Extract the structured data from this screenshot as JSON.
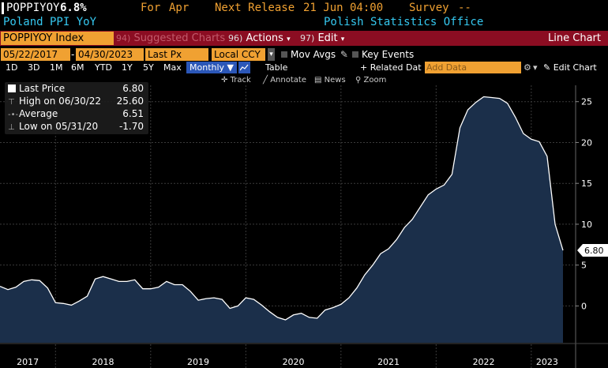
{
  "header": {
    "ticker": "POPPIYOY",
    "value": "6.8%",
    "for_label": "For",
    "period": "Apr",
    "next_release_label": "Next Release",
    "next_release": "21 Jun 04:00",
    "survey_label": "Survey",
    "survey_value": "--",
    "name": "Poland PPI YoY",
    "source": "Polish Statistics Office"
  },
  "function_bar": {
    "security": "POPPIYOY Index",
    "suggested_num": "94)",
    "suggested_label": "Suggested Charts",
    "actions_num": "96)",
    "actions_label": "Actions",
    "edit_num": "97)",
    "edit_label": "Edit",
    "chart_type": "Line Chart"
  },
  "options": {
    "start_date": "05/22/2017",
    "end_date": "04/30/2023",
    "field": "Last Px",
    "currency": "Local CCY",
    "mov_avgs": "Mov Avgs",
    "key_events": "Key Events"
  },
  "periods": {
    "items": [
      "1D",
      "3D",
      "1M",
      "6M",
      "YTD",
      "1Y",
      "5Y",
      "Max"
    ],
    "frequency": "Monthly",
    "table": "Table",
    "related_data": "+ Related Dat",
    "add_data_placeholder": "Add Data",
    "edit_chart": "Edit Chart"
  },
  "toolbar": {
    "track": "Track",
    "annotate": "Annotate",
    "news": "News",
    "zoom": "Zoom"
  },
  "legend": {
    "last_price_label": "Last Price",
    "last_price": "6.80",
    "high_label": "High on 06/30/22",
    "high": "25.60",
    "average_label": "Average",
    "average": "6.51",
    "low_label": "Low on 05/31/20",
    "low": "-1.70"
  },
  "colors": {
    "area_fill": "#1b2f4a",
    "line": "#ffffff",
    "accent_orange": "#f0a132",
    "function_bar": "#8b0d22",
    "active_blue": "#2b57b8",
    "header_cyan": "#35c8f0",
    "header_orange": "#f0a132"
  },
  "chart_data": {
    "type": "area",
    "x_labels": [
      "2017",
      "2018",
      "2019",
      "2020",
      "2021",
      "2022",
      "2023"
    ],
    "y_ticks": [
      0,
      5,
      10,
      15,
      20,
      25
    ],
    "ylim": [
      -4.5,
      27
    ],
    "last_value_label": "6.80",
    "series": [
      {
        "values": [
          2.4,
          2.0,
          2.3,
          3.0,
          3.2,
          3.1,
          2.2,
          0.4,
          0.3,
          0.1,
          0.6,
          1.2,
          3.3,
          3.6,
          3.3,
          3.0,
          3.0,
          3.2,
          2.1,
          2.1,
          2.3,
          3.0,
          2.6,
          2.6,
          1.8,
          0.7,
          0.9,
          1.0,
          0.8,
          -0.3,
          0.0,
          1.0,
          0.8,
          0.1,
          -0.7,
          -1.4,
          -1.7,
          -1.1,
          -0.9,
          -1.4,
          -1.5,
          -0.5,
          -0.2,
          0.2,
          1.0,
          2.2,
          3.8,
          5.0,
          6.4,
          7.0,
          8.1,
          9.6,
          10.6,
          12.1,
          13.6,
          14.3,
          14.8,
          16.1,
          21.8,
          24.0,
          24.9,
          25.6,
          25.5,
          25.4,
          24.8,
          23.1,
          21.1,
          20.4,
          20.1,
          18.3,
          10.0,
          6.8
        ]
      }
    ]
  }
}
